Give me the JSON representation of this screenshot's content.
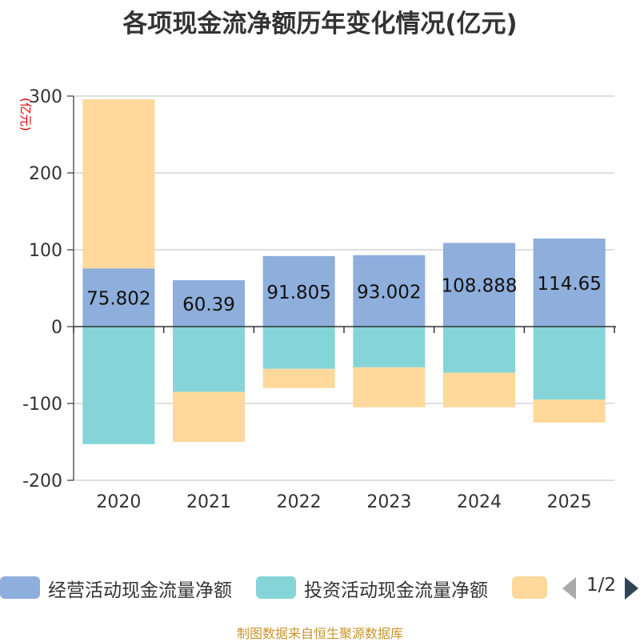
{
  "chart_data": {
    "type": "bar",
    "stacked": true,
    "title": "各项现金流净额历年变化情况(亿元)",
    "ylabel": "(亿元)",
    "ylim": [
      -200,
      300
    ],
    "yticks": [
      300,
      200,
      100,
      0,
      -100,
      -200
    ],
    "categories": [
      "2020",
      "2021",
      "2022",
      "2023",
      "2024",
      "2025"
    ],
    "series": [
      {
        "name": "经营活动现金流量净额",
        "color": "#8eaedb",
        "values": [
          75.802,
          60.39,
          91.805,
          93.002,
          108.888,
          114.65
        ],
        "labels": [
          "75.802",
          "60.39",
          "91.805",
          "93.002",
          "108.888",
          "114.65"
        ]
      },
      {
        "name": "投资活动现金流量净额",
        "color": "#85d5d8",
        "values": [
          -153,
          -85,
          -55,
          -53,
          -60,
          -95
        ]
      },
      {
        "name": "",
        "color": "#fed99b",
        "values": [
          220,
          -65,
          -25,
          -52,
          -45,
          -30
        ]
      }
    ],
    "legend_position": "bottom"
  },
  "pager": {
    "text": "1/2"
  },
  "source": "制图数据来自恒生聚源数据库"
}
